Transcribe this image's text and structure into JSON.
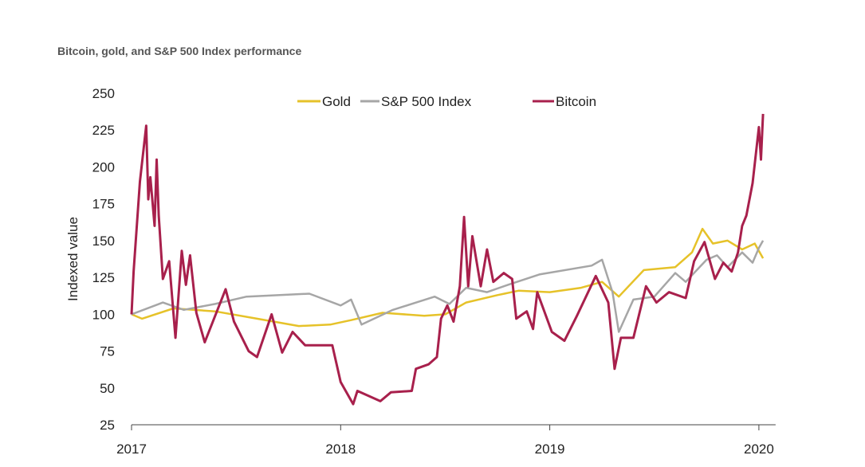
{
  "chart_data": {
    "type": "line",
    "title": "Bitcoin, gold, and S&P 500 Index performance",
    "xlabel": "",
    "ylabel": "Indexed value",
    "xlim": [
      2017,
      2020.05
    ],
    "ylim": [
      25,
      250
    ],
    "x_ticks": [
      "2017",
      "2018",
      "2019",
      "2020"
    ],
    "y_ticks": [
      "25",
      "50",
      "75",
      "100",
      "125",
      "150",
      "175",
      "200",
      "225",
      "250"
    ],
    "grid": false,
    "legend_position": "top-center",
    "series": [
      {
        "name": "Gold",
        "color": "#e6c229",
        "x": [
          2017.0,
          2017.05,
          2017.2,
          2017.4,
          2017.6,
          2017.8,
          2017.95,
          2018.05,
          2018.2,
          2018.4,
          2018.5,
          2018.6,
          2018.75,
          2018.85,
          2019.0,
          2019.15,
          2019.25,
          2019.33,
          2019.45,
          2019.6,
          2019.68,
          2019.73,
          2019.78,
          2019.85,
          2019.92,
          2019.98,
          2020.02
        ],
        "y": [
          100,
          97,
          104,
          102,
          97,
          92,
          93,
          96,
          101,
          99,
          100,
          108,
          113,
          116,
          115,
          118,
          122,
          112,
          130,
          132,
          142,
          158,
          148,
          150,
          144,
          148,
          138
        ]
      },
      {
        "name": "S&P 500 Index",
        "color": "#a6a6a6",
        "x": [
          2017.0,
          2017.15,
          2017.25,
          2017.4,
          2017.55,
          2017.85,
          2018.0,
          2018.05,
          2018.1,
          2018.25,
          2018.45,
          2018.52,
          2018.6,
          2018.7,
          2018.8,
          2018.95,
          2019.2,
          2019.25,
          2019.3,
          2019.33,
          2019.4,
          2019.5,
          2019.6,
          2019.65,
          2019.75,
          2019.8,
          2019.85,
          2019.92,
          2019.97,
          2020.0,
          2020.02
        ],
        "y": [
          100,
          108,
          103,
          107,
          112,
          114,
          106,
          110,
          93,
          103,
          112,
          107,
          118,
          115,
          120,
          127,
          133,
          137,
          115,
          88,
          110,
          112,
          128,
          122,
          137,
          140,
          132,
          142,
          135,
          145,
          150
        ]
      },
      {
        "name": "Bitcoin",
        "color": "#a8204c",
        "x": [
          2017.0,
          2017.01,
          2017.04,
          2017.07,
          2017.08,
          2017.09,
          2017.11,
          2017.12,
          2017.13,
          2017.15,
          2017.18,
          2017.21,
          2017.24,
          2017.26,
          2017.28,
          2017.31,
          2017.35,
          2017.45,
          2017.49,
          2017.56,
          2017.6,
          2017.67,
          2017.72,
          2017.77,
          2017.83,
          2017.96,
          2018.0,
          2018.06,
          2018.08,
          2018.19,
          2018.24,
          2018.34,
          2018.36,
          2018.42,
          2018.46,
          2018.48,
          2018.51,
          2018.54,
          2018.57,
          2018.59,
          2018.61,
          2018.63,
          2018.67,
          2018.7,
          2018.73,
          2018.78,
          2018.82,
          2018.84,
          2018.89,
          2018.92,
          2018.94,
          2019.01,
          2019.07,
          2019.13,
          2019.22,
          2019.28,
          2019.31,
          2019.34,
          2019.4,
          2019.46,
          2019.51,
          2019.57,
          2019.65,
          2019.69,
          2019.74,
          2019.79,
          2019.83,
          2019.87,
          2019.9,
          2019.92,
          2019.94,
          2019.97,
          2020.0,
          2020.01,
          2020.02
        ],
        "y": [
          100,
          129,
          190,
          228,
          178,
          193,
          160,
          205,
          167,
          124,
          136,
          84,
          143,
          120,
          140,
          101,
          81,
          117,
          95,
          75,
          71,
          100,
          74,
          88,
          79,
          79,
          54,
          39,
          48,
          41,
          47,
          48,
          63,
          66,
          71,
          97,
          106,
          95,
          119,
          166,
          119,
          153,
          119,
          144,
          122,
          128,
          124,
          97,
          102,
          90,
          115,
          88,
          82,
          99,
          126,
          108,
          63,
          84,
          84,
          119,
          108,
          115,
          111,
          136,
          149,
          124,
          135,
          129,
          142,
          160,
          167,
          189,
          227,
          205,
          236
        ]
      }
    ]
  }
}
